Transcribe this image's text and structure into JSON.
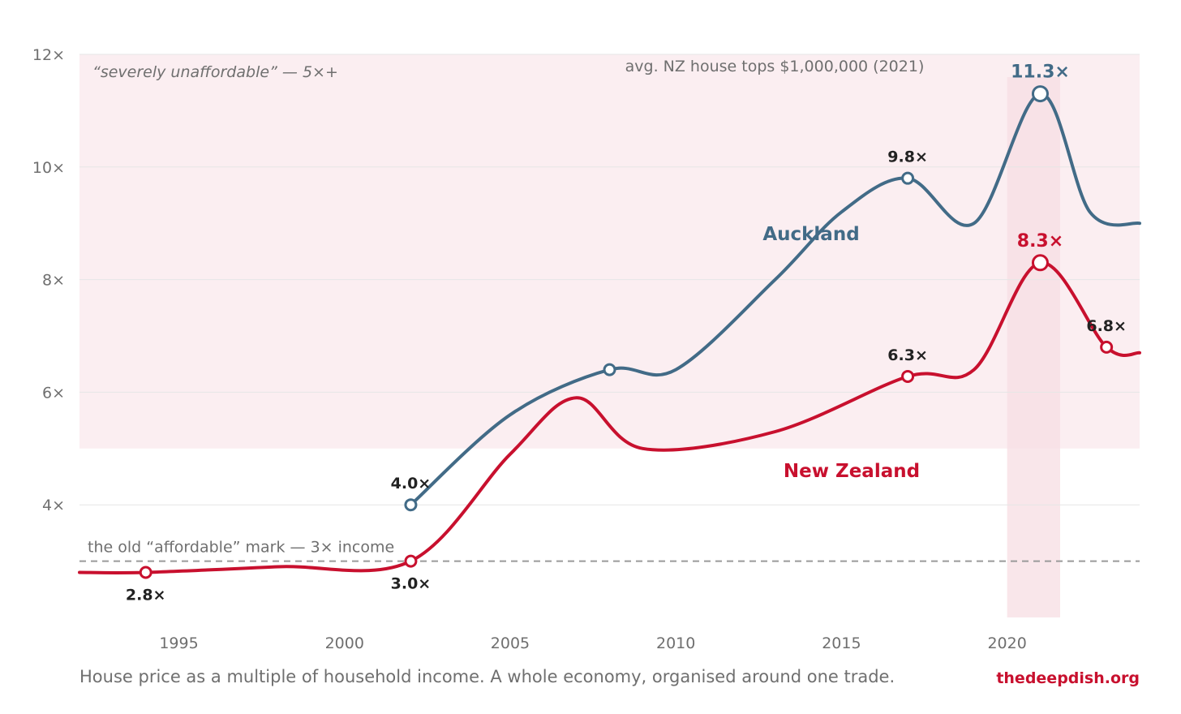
{
  "chart_data": {
    "type": "line",
    "caption": "House price as a multiple of household income. A whole economy, organised around one trade.",
    "source": "thedeepdish.org",
    "x_ticks": [
      1995,
      2000,
      2005,
      2010,
      2015,
      2020
    ],
    "y_ticks": [
      "4×",
      "6×",
      "8×",
      "10×",
      "12×"
    ],
    "xlim": [
      1992,
      2024
    ],
    "ylim": [
      2,
      12
    ],
    "colors": {
      "band": "#fbeef1",
      "highlight": "#f7dde3",
      "grid": "#e6e6e6",
      "threshold": "#9a9a9a"
    },
    "band": {
      "from": 5,
      "to": 12,
      "label": "“severely unaffordable” — 5×+"
    },
    "threshold": {
      "value": 3,
      "label": "the old “affordable” mark — 3× income"
    },
    "highlight": {
      "from": 2020,
      "to": 2021.6,
      "label": "avg. NZ house tops $1,000,000 (2021)"
    },
    "series": [
      {
        "name": "Auckland",
        "color": "#426b87",
        "points": [
          [
            2002,
            4.0
          ],
          [
            2005,
            5.6
          ],
          [
            2008,
            6.4
          ],
          [
            2010,
            6.4
          ],
          [
            2013,
            8.0
          ],
          [
            2015,
            9.2
          ],
          [
            2017,
            9.8
          ],
          [
            2019,
            9.0
          ],
          [
            2021,
            11.3
          ],
          [
            2022.5,
            9.2
          ],
          [
            2024,
            9.0
          ]
        ],
        "markers": [
          {
            "x": 2002,
            "y": 4.0,
            "label": "4.0×"
          },
          {
            "x": 2008,
            "y": 6.4,
            "label": ""
          },
          {
            "x": 2017,
            "y": 9.8,
            "label": "9.8×"
          },
          {
            "x": 2021,
            "y": 11.3,
            "label": "11.3×"
          }
        ]
      },
      {
        "name": "New Zealand",
        "color": "#c8102e",
        "points": [
          [
            1992,
            2.8
          ],
          [
            1994,
            2.8
          ],
          [
            1998,
            2.9
          ],
          [
            2002,
            3.0
          ],
          [
            2005,
            4.9
          ],
          [
            2007,
            5.9
          ],
          [
            2009,
            5.0
          ],
          [
            2013,
            5.3
          ],
          [
            2017,
            6.28
          ],
          [
            2019,
            6.4
          ],
          [
            2021,
            8.3
          ],
          [
            2023,
            6.8
          ],
          [
            2024,
            6.7
          ]
        ],
        "markers": [
          {
            "x": 1994,
            "y": 2.8,
            "label": "2.8×"
          },
          {
            "x": 2002,
            "y": 3.0,
            "label": "3.0×"
          },
          {
            "x": 2017,
            "y": 6.28,
            "label": "6.3×"
          },
          {
            "x": 2021,
            "y": 8.3,
            "label": "8.3×"
          },
          {
            "x": 2023,
            "y": 6.8,
            "label": "6.8×"
          }
        ]
      }
    ]
  }
}
